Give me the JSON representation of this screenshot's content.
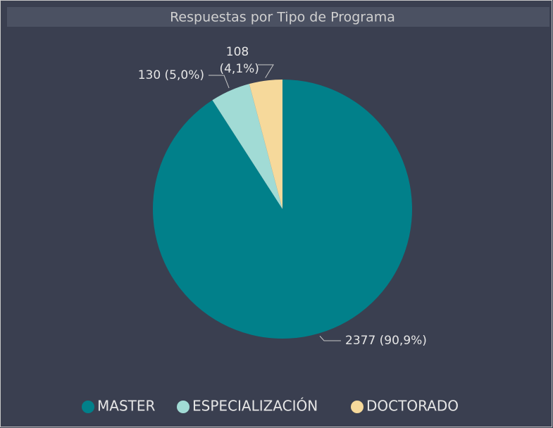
{
  "chart_data": {
    "type": "pie",
    "title": "Respuestas por Tipo de Programa",
    "categories": [
      "MASTER",
      "ESPECIALIZACIÓN",
      "DOCTORADO"
    ],
    "values": [
      2377,
      130,
      108
    ],
    "value_labels": [
      "2377 (90,9%)",
      "130 (5,0%)",
      "108 (4,1%)"
    ],
    "colors": [
      "#01808a",
      "#a1dbd5",
      "#f6d99b"
    ],
    "legend": "bottom"
  }
}
